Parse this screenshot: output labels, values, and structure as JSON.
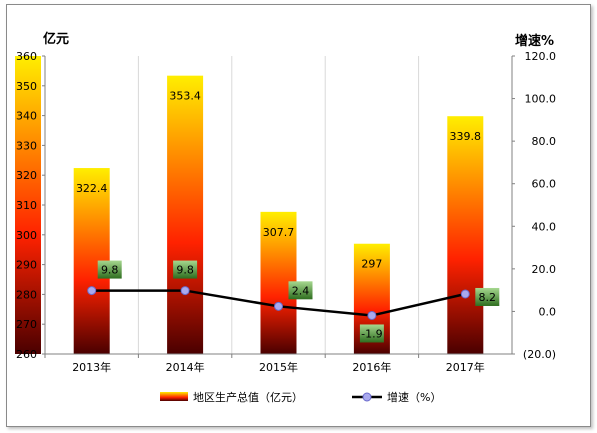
{
  "chart_data": {
    "type": "bar",
    "categories": [
      "2013年",
      "2014年",
      "2015年",
      "2016年",
      "2017年"
    ],
    "series": [
      {
        "name": "地区生产总值（亿元）",
        "type": "bar",
        "axis": "left",
        "values": [
          322.4,
          353.4,
          307.7,
          297,
          339.8
        ],
        "labels": [
          "322.4",
          "353.4",
          "307.7",
          "297",
          "339.8"
        ]
      },
      {
        "name": "增速（%）",
        "type": "line",
        "axis": "right",
        "values": [
          9.8,
          9.8,
          2.4,
          -1.9,
          8.2
        ],
        "labels": [
          "9.8",
          "9.8",
          "2.4",
          "-1.9",
          "8.2"
        ]
      }
    ],
    "left_axis": {
      "title": "亿元",
      "range": [
        260,
        360
      ],
      "ticks": [
        "260",
        "270",
        "280",
        "290",
        "300",
        "310",
        "320",
        "330",
        "340",
        "350",
        "360"
      ]
    },
    "right_axis": {
      "title": "增速%",
      "range": [
        -20,
        120
      ],
      "ticks": [
        "(20.0)",
        "0.0",
        "20.0",
        "40.0",
        "60.0",
        "80.0",
        "100.0",
        "120.0"
      ],
      "negative_tick_color": "#ff0000"
    },
    "grid": true,
    "legend": {
      "position": "bottom",
      "items": [
        "地区生产总值（亿元）",
        "增速（%）"
      ]
    },
    "colors": {
      "bar_top": "#ffee00",
      "bar_mid": "#ff2200",
      "bar_bottom": "#4a0000",
      "line": "#000000",
      "marker": "#a9a9ee",
      "label_box_top": "#a6d88f",
      "label_box_bottom": "#2e6e1f",
      "frame_border": "#8a8a8a"
    }
  }
}
